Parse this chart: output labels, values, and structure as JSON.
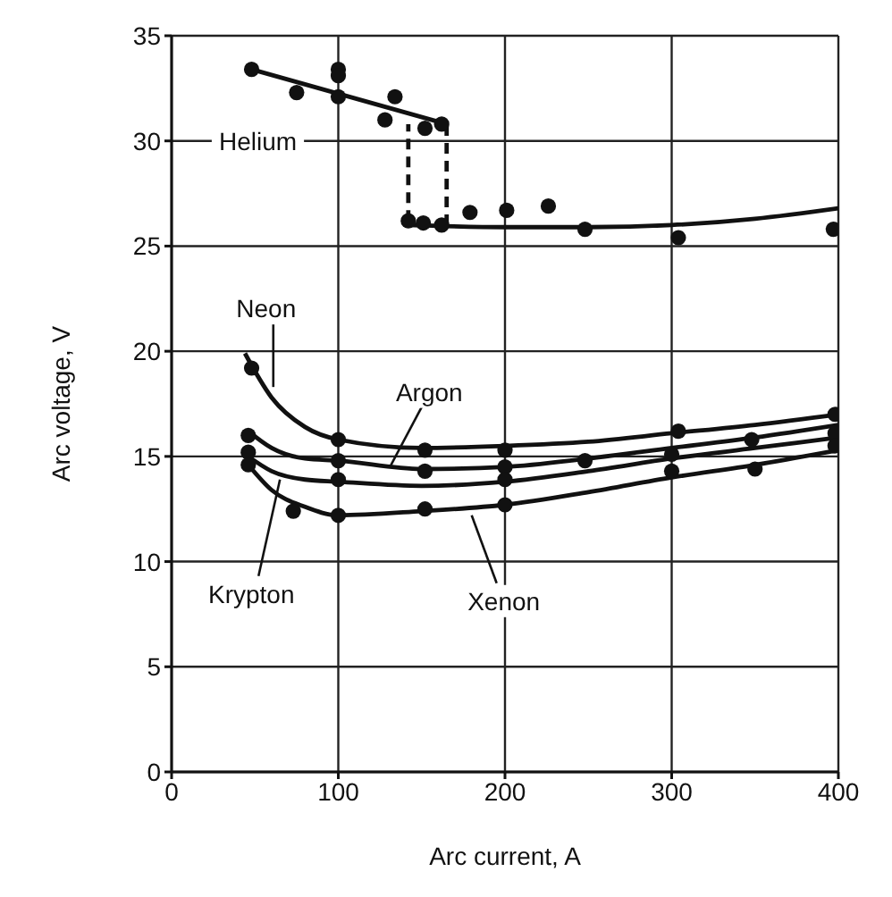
{
  "chart_data": {
    "type": "line",
    "xlabel": "Arc current, A",
    "ylabel": "Arc voltage, V",
    "xlim": [
      0,
      400
    ],
    "xticks": [
      0,
      100,
      200,
      300,
      400
    ],
    "ylim": [
      0,
      35
    ],
    "yticks": [
      0,
      5,
      10,
      15,
      20,
      25,
      30,
      35
    ],
    "grid": true,
    "series": [
      {
        "color": "#111111",
        "x": [
          48,
          165
        ],
        "values": [
          33.4,
          30.8
        ]
      },
      {
        "color": "#111111",
        "x": [
          142,
          200,
          250,
          300,
          350,
          400
        ],
        "values": [
          26.0,
          25.9,
          25.9,
          26.0,
          26.3,
          26.8
        ]
      },
      {
        "color": "#111111",
        "line_style": "dashed",
        "x": [
          142,
          142
        ],
        "values": [
          26.2,
          30.8
        ]
      },
      {
        "color": "#111111",
        "line_style": "dashed",
        "x": [
          165,
          165
        ],
        "values": [
          26.0,
          30.8
        ]
      },
      {
        "type": "scatter",
        "color": "#111111",
        "marker": "circle",
        "x": [
          48,
          75,
          100,
          100,
          100,
          128,
          134,
          152,
          162,
          142,
          151,
          162,
          179,
          201,
          226,
          248,
          304,
          397
        ],
        "values": [
          33.4,
          32.3,
          33.4,
          33.1,
          32.1,
          31.0,
          32.1,
          30.6,
          30.8,
          26.2,
          26.1,
          26.0,
          26.6,
          26.7,
          26.9,
          25.8,
          25.4,
          25.8
        ]
      },
      {
        "color": "#111111",
        "x": [
          44,
          60,
          80,
          100,
          150,
          200,
          250,
          300,
          350,
          400
        ],
        "values": [
          19.9,
          17.8,
          16.4,
          15.8,
          15.4,
          15.5,
          15.7,
          16.1,
          16.5,
          17.0
        ]
      },
      {
        "color": "#111111",
        "x": [
          46,
          60,
          80,
          100,
          150,
          200,
          250,
          300,
          350,
          400
        ],
        "values": [
          16.2,
          15.4,
          14.9,
          14.8,
          14.4,
          14.5,
          14.9,
          15.4,
          15.9,
          16.5
        ]
      },
      {
        "color": "#111111",
        "x": [
          46,
          60,
          80,
          100,
          150,
          200,
          250,
          300,
          350,
          400
        ],
        "values": [
          15.0,
          14.3,
          13.9,
          13.8,
          13.6,
          13.8,
          14.3,
          14.9,
          15.4,
          15.9
        ]
      },
      {
        "color": "#111111",
        "x": [
          46,
          60,
          80,
          100,
          150,
          200,
          250,
          300,
          350,
          400
        ],
        "values": [
          14.6,
          13.4,
          12.6,
          12.2,
          12.4,
          12.7,
          13.3,
          14.0,
          14.6,
          15.3
        ]
      },
      {
        "type": "scatter",
        "color": "#111111",
        "marker": "circle",
        "x": [
          48,
          100,
          100,
          100,
          100,
          152,
          152,
          152,
          200,
          200,
          200,
          200,
          248,
          304,
          300,
          300,
          348,
          350,
          398,
          398,
          398
        ],
        "values": [
          19.2,
          15.8,
          14.8,
          13.9,
          12.2,
          15.3,
          14.3,
          12.5,
          15.3,
          14.5,
          13.9,
          12.7,
          14.8,
          16.2,
          15.1,
          14.3,
          15.8,
          14.4,
          17.0,
          16.1,
          15.5
        ]
      },
      {
        "type": "scatter",
        "color": "#111111",
        "marker": "circle",
        "x": [
          46,
          46,
          46,
          73
        ],
        "values": [
          16.0,
          15.2,
          14.6,
          12.4
        ]
      }
    ],
    "annotations": [
      {
        "text": "Helium",
        "x": 100,
        "y": 32.1
      },
      {
        "text": "Neon",
        "x": 61,
        "y": 18.3
      },
      {
        "text": "Argon",
        "x": 131,
        "y": 14.5
      },
      {
        "text": "Krypton",
        "x": 65,
        "y": 13.9
      },
      {
        "text": "Xenon",
        "x": 180,
        "y": 12.2
      }
    ]
  }
}
